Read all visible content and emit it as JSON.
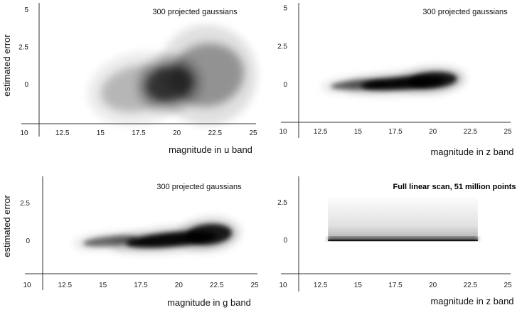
{
  "chart_data": [
    {
      "id": "top-left",
      "type": "heatmap",
      "annotation": "300 projected gaussians",
      "xlabel": "magnitude in u band",
      "ylabel": "estimated error",
      "x_ticks": [
        "10",
        "12.5",
        "15",
        "17.5",
        "20",
        "22.5",
        "25"
      ],
      "y_ticks": [
        "5",
        "2.5",
        "0"
      ],
      "xlim": [
        10,
        25
      ],
      "ylim": [
        -2.5,
        5
      ],
      "density": [
        {
          "x": 19.5,
          "y": 0,
          "sx": 1.6,
          "sy": 0.8,
          "w": 1.0
        },
        {
          "x": 22.0,
          "y": 0.6,
          "sx": 2.4,
          "sy": 1.4,
          "w": 0.55
        },
        {
          "x": 17.5,
          "y": -0.3,
          "sx": 2.5,
          "sy": 1.0,
          "w": 0.35
        }
      ]
    },
    {
      "id": "top-right",
      "type": "heatmap",
      "annotation": "300 projected gaussians",
      "xlabel": "magnitude in z band",
      "ylabel": "",
      "x_ticks": [
        "10",
        "12.5",
        "15",
        "17.5",
        "20",
        "22.5",
        "25"
      ],
      "y_ticks": [
        "5",
        "2.5",
        "0"
      ],
      "xlim": [
        10,
        25
      ],
      "ylim": [
        -2.5,
        5
      ],
      "density": [
        {
          "x": 18.0,
          "y": 0.05,
          "sx": 2.8,
          "sy": 0.28,
          "w": 1.0
        },
        {
          "x": 20.0,
          "y": 0.25,
          "sx": 1.6,
          "sy": 0.35,
          "w": 0.9
        },
        {
          "x": 15.0,
          "y": -0.05,
          "sx": 1.8,
          "sy": 0.2,
          "w": 0.6
        }
      ]
    },
    {
      "id": "bottom-left",
      "type": "heatmap",
      "annotation": "300 projected gaussians",
      "xlabel": "magnitude in g band",
      "ylabel": "estimated error",
      "x_ticks": [
        "10",
        "12.5",
        "15",
        "17.5",
        "20",
        "22.5",
        "25"
      ],
      "y_ticks": [
        "2.5",
        "0"
      ],
      "xlim": [
        10,
        25
      ],
      "ylim": [
        -2.5,
        5
      ],
      "density": [
        {
          "x": 19.5,
          "y": 0.05,
          "sx": 3.0,
          "sy": 0.32,
          "w": 1.0
        },
        {
          "x": 22.0,
          "y": 0.4,
          "sx": 1.5,
          "sy": 0.45,
          "w": 0.9
        },
        {
          "x": 15.5,
          "y": -0.05,
          "sx": 1.8,
          "sy": 0.22,
          "w": 0.55
        }
      ]
    },
    {
      "id": "bottom-right",
      "type": "heatmap",
      "annotation": "Full linear scan, 51 million points",
      "xlabel": "magnitude in z band",
      "ylabel": "",
      "x_ticks": [
        "10",
        "12.5",
        "15",
        "17.5",
        "20",
        "22.5",
        "25"
      ],
      "y_ticks": [
        "2.5",
        "0"
      ],
      "xlim": [
        10,
        25
      ],
      "ylim": [
        -2.5,
        5
      ],
      "scan_extent": {
        "x": [
          13.0,
          23.0
        ],
        "y": [
          0,
          2.8
        ]
      }
    }
  ]
}
